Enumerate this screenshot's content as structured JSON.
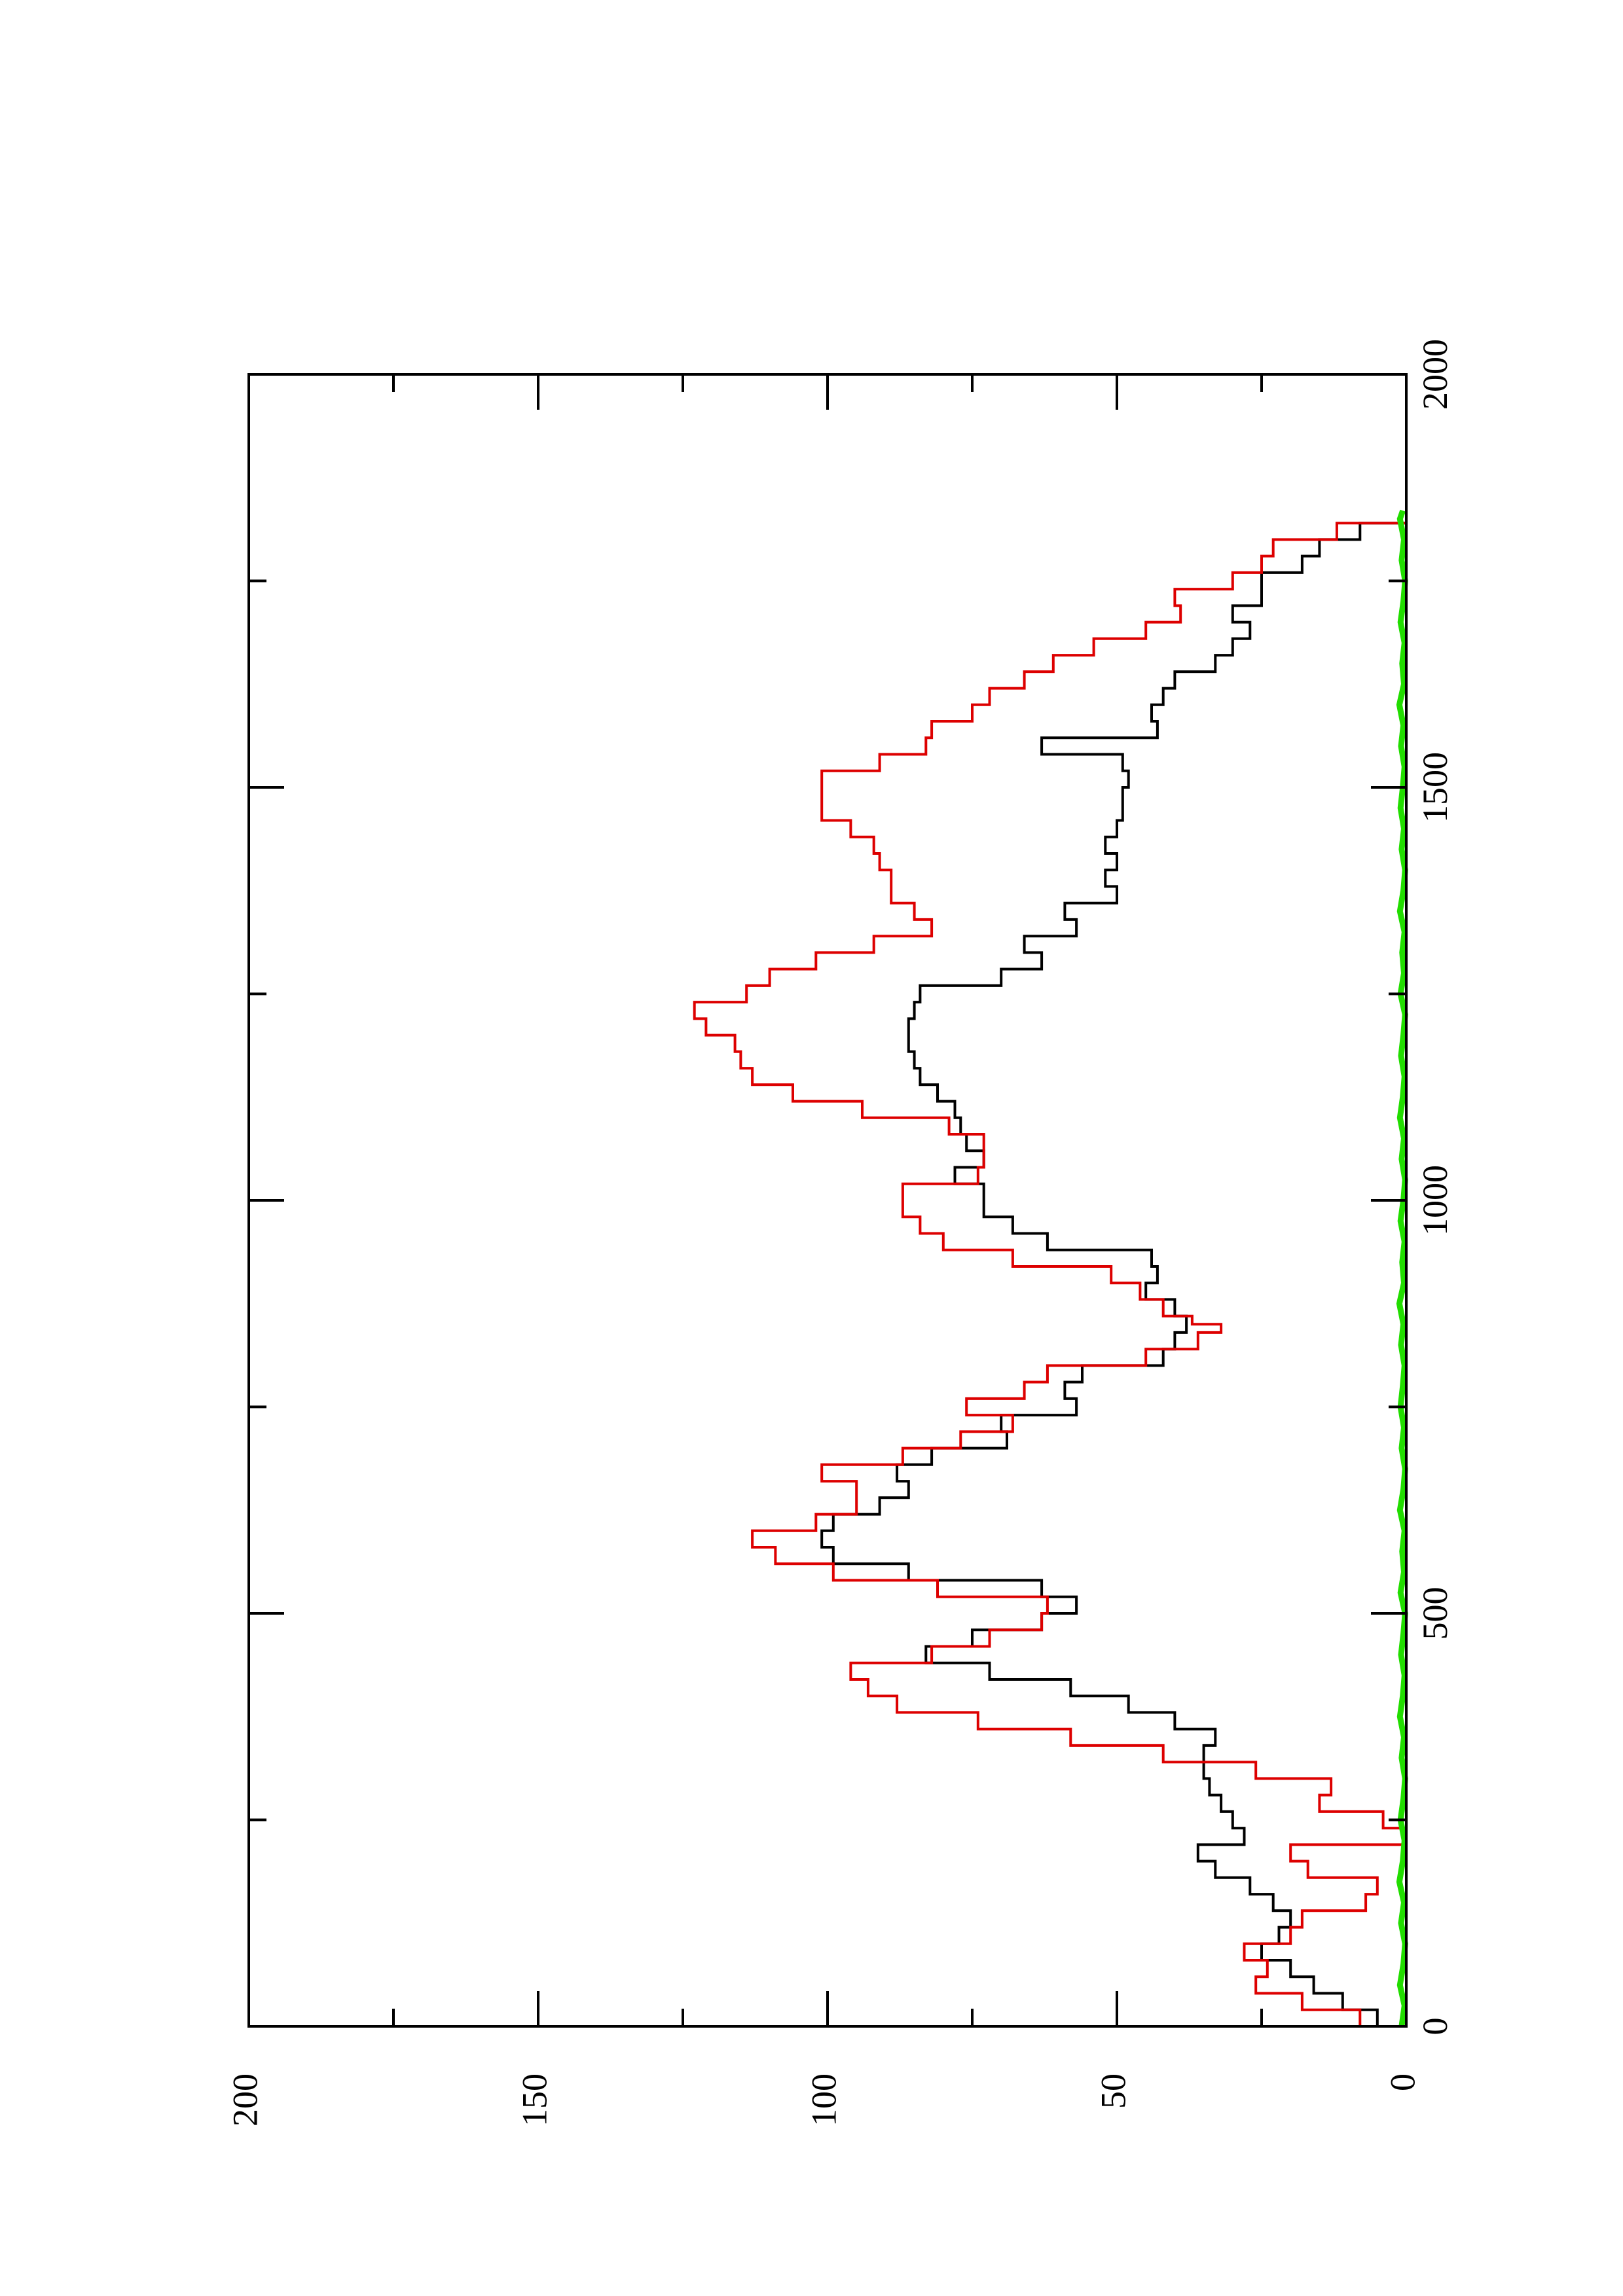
{
  "chart_data": {
    "type": "line",
    "title": "",
    "xlabel": "",
    "ylabel": "",
    "orientation": "rotated 90 degrees counter-clockwise on the page",
    "xlim": [
      0,
      2000
    ],
    "ylim": [
      0,
      200
    ],
    "x_ticks": [
      "0",
      "500",
      "1000",
      "1500",
      "2000"
    ],
    "y_ticks": [
      "0",
      "50",
      "100",
      "150",
      "200"
    ],
    "grid": false,
    "legend": "none",
    "series": [
      {
        "color": "#000000",
        "x": [
          0,
          20,
          40,
          60,
          80,
          100,
          120,
          140,
          160,
          180,
          200,
          220,
          240,
          260,
          280,
          300,
          320,
          340,
          360,
          380,
          400,
          420,
          440,
          460,
          480,
          500,
          520,
          540,
          560,
          580,
          600,
          620,
          640,
          660,
          680,
          700,
          720,
          740,
          760,
          780,
          800,
          820,
          840,
          850,
          860,
          880,
          900,
          920,
          940,
          960,
          980,
          1000,
          1020,
          1040,
          1060,
          1080,
          1100,
          1120,
          1140,
          1160,
          1180,
          1200,
          1220,
          1240,
          1260,
          1280,
          1300,
          1320,
          1340,
          1360,
          1380,
          1400,
          1420,
          1440,
          1460,
          1480,
          1500,
          1520,
          1540,
          1560,
          1580,
          1600,
          1620,
          1640,
          1660,
          1680,
          1700,
          1720,
          1740,
          1760,
          1780,
          1800,
          1820,
          1835
        ],
        "y": [
          0,
          5,
          11,
          16,
          20,
          25,
          22,
          20,
          23,
          27,
          33,
          36,
          28,
          30,
          32,
          34,
          35,
          35,
          33,
          40,
          48,
          58,
          72,
          83,
          75,
          63,
          57,
          63,
          86,
          99,
          101,
          99,
          91,
          86,
          88,
          82,
          69,
          70,
          57,
          59,
          56,
          42,
          40,
          38,
          38,
          40,
          45,
          43,
          44,
          62,
          68,
          73,
          73,
          78,
          73,
          76,
          77,
          78,
          81,
          84,
          85,
          86,
          86,
          85,
          84,
          70,
          63,
          66,
          57,
          59,
          50,
          52,
          50,
          52,
          50,
          49,
          49,
          48,
          49,
          63,
          43,
          44,
          42,
          40,
          33,
          30,
          27,
          30,
          25,
          25,
          18,
          15,
          8,
          0
        ]
      },
      {
        "color": "#dd0000",
        "x": [
          0,
          20,
          40,
          60,
          80,
          100,
          120,
          140,
          160,
          180,
          200,
          220,
          240,
          260,
          280,
          300,
          320,
          340,
          360,
          380,
          400,
          420,
          440,
          460,
          480,
          500,
          520,
          540,
          560,
          580,
          600,
          620,
          640,
          660,
          680,
          700,
          720,
          740,
          760,
          780,
          800,
          820,
          840,
          850,
          860,
          880,
          900,
          920,
          940,
          960,
          980,
          1000,
          1020,
          1040,
          1060,
          1080,
          1100,
          1120,
          1140,
          1160,
          1180,
          1200,
          1220,
          1240,
          1260,
          1280,
          1300,
          1320,
          1340,
          1360,
          1380,
          1400,
          1420,
          1440,
          1460,
          1480,
          1500,
          1520,
          1540,
          1560,
          1580,
          1600,
          1620,
          1640,
          1660,
          1680,
          1700,
          1720,
          1740,
          1760,
          1780,
          1800,
          1820,
          1835
        ],
        "y": [
          0,
          8,
          18,
          26,
          24,
          28,
          20,
          18,
          7,
          5,
          17,
          20,
          0,
          4,
          15,
          13,
          26,
          42,
          58,
          74,
          88,
          93,
          96,
          82,
          72,
          63,
          62,
          81,
          99,
          109,
          113,
          102,
          95,
          95,
          101,
          87,
          77,
          68,
          76,
          66,
          62,
          45,
          36,
          32,
          37,
          42,
          46,
          51,
          68,
          80,
          84,
          87,
          87,
          74,
          73,
          73,
          79,
          94,
          106,
          113,
          115,
          116,
          121,
          123,
          114,
          110,
          102,
          92,
          82,
          85,
          89,
          89,
          91,
          92,
          96,
          101,
          101,
          101,
          91,
          83,
          82,
          75,
          72,
          66,
          61,
          54,
          45,
          39,
          40,
          30,
          25,
          23,
          12,
          0
        ]
      },
      {
        "color": "#22dd00",
        "x": [
          0,
          25,
          50,
          75,
          100,
          125,
          150,
          175,
          200,
          225,
          250,
          275,
          300,
          325,
          350,
          375,
          400,
          425,
          450,
          475,
          500,
          525,
          550,
          575,
          600,
          625,
          650,
          675,
          700,
          725,
          750,
          775,
          800,
          825,
          850,
          875,
          900,
          925,
          950,
          975,
          1000,
          1025,
          1050,
          1075,
          1100,
          1125,
          1150,
          1175,
          1200,
          1225,
          1250,
          1275,
          1300,
          1325,
          1350,
          1375,
          1400,
          1425,
          1450,
          1475,
          1500,
          1525,
          1550,
          1575,
          1600,
          1625,
          1650,
          1675,
          1700,
          1725,
          1750,
          1775,
          1800,
          1825,
          1835
        ],
        "y": [
          0.8,
          0.3,
          1.1,
          0.5,
          0.2,
          0.9,
          0.4,
          1.2,
          0.6,
          0.3,
          1.0,
          0.5,
          0.2,
          0.8,
          0.4,
          1.1,
          0.6,
          0.3,
          0.9,
          0.5,
          0.2,
          1.0,
          0.4,
          0.7,
          0.3,
          1.1,
          0.5,
          0.2,
          0.8,
          0.4,
          1.0,
          0.6,
          0.3,
          0.9,
          0.5,
          1.2,
          0.4,
          0.7,
          0.3,
          1.0,
          0.5,
          0.2,
          0.8,
          0.4,
          1.1,
          0.6,
          0.3,
          0.9,
          0.5,
          0.2,
          1.0,
          0.4,
          0.7,
          0.3,
          1.1,
          0.5,
          0.2,
          0.8,
          0.4,
          1.0,
          0.6,
          0.3,
          0.9,
          0.5,
          1.2,
          0.4,
          0.7,
          0.3,
          1.0,
          0.5,
          0.2,
          0.8,
          0.4,
          1.1,
          0.6
        ]
      }
    ]
  }
}
